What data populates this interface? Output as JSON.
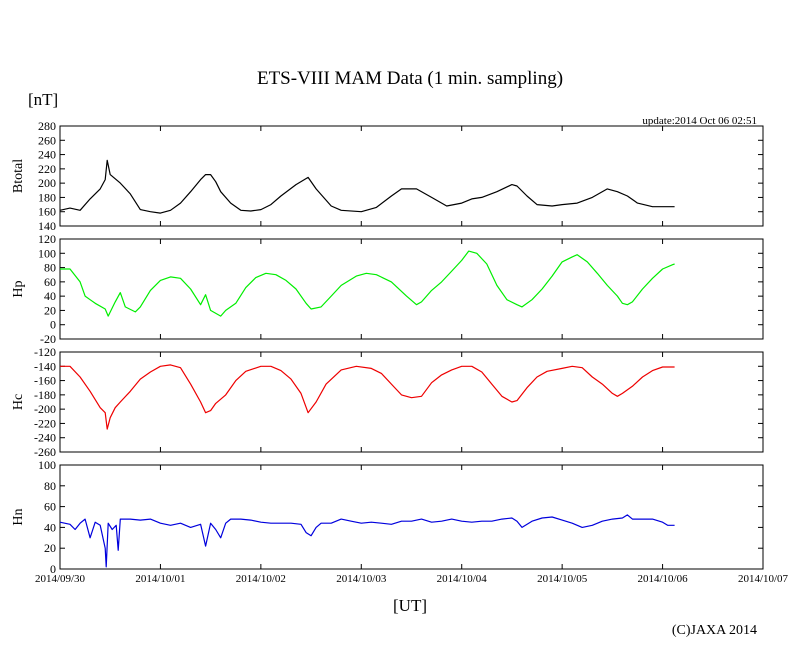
{
  "chart_data": {
    "type": "line",
    "title": "ETS-VIII MAM Data (1 min. sampling)",
    "unit_label": "[nT]",
    "update_text": "update:2014 Oct 06 02:51",
    "xlabel": "[UT]",
    "copyright": "(C)JAXA 2014",
    "x_ticks": [
      "2014/09/30",
      "2014/10/01",
      "2014/10/02",
      "2014/10/03",
      "2014/10/04",
      "2014/10/05",
      "2014/10/06",
      "2014/10/07"
    ],
    "xlim": [
      0,
      7
    ],
    "panels": [
      {
        "name": "Btotal",
        "color": "#000000",
        "ylim": [
          140,
          280
        ],
        "yticks": [
          140,
          160,
          180,
          200,
          220,
          240,
          260,
          280
        ],
        "series": [
          [
            0,
            162
          ],
          [
            0.1,
            165
          ],
          [
            0.2,
            162
          ],
          [
            0.3,
            178
          ],
          [
            0.4,
            192
          ],
          [
            0.45,
            205
          ],
          [
            0.47,
            232
          ],
          [
            0.5,
            212
          ],
          [
            0.6,
            200
          ],
          [
            0.7,
            185
          ],
          [
            0.8,
            163
          ],
          [
            0.9,
            160
          ],
          [
            1.0,
            158
          ],
          [
            1.1,
            162
          ],
          [
            1.2,
            172
          ],
          [
            1.3,
            188
          ],
          [
            1.4,
            205
          ],
          [
            1.45,
            212
          ],
          [
            1.5,
            212
          ],
          [
            1.55,
            202
          ],
          [
            1.6,
            188
          ],
          [
            1.7,
            172
          ],
          [
            1.8,
            162
          ],
          [
            1.9,
            161
          ],
          [
            2.0,
            163
          ],
          [
            2.1,
            170
          ],
          [
            2.2,
            182
          ],
          [
            2.35,
            198
          ],
          [
            2.47,
            208
          ],
          [
            2.55,
            192
          ],
          [
            2.7,
            168
          ],
          [
            2.8,
            162
          ],
          [
            3.0,
            160
          ],
          [
            3.15,
            166
          ],
          [
            3.3,
            182
          ],
          [
            3.4,
            192
          ],
          [
            3.55,
            192
          ],
          [
            3.7,
            180
          ],
          [
            3.85,
            168
          ],
          [
            4.0,
            172
          ],
          [
            4.1,
            178
          ],
          [
            4.2,
            180
          ],
          [
            4.35,
            188
          ],
          [
            4.5,
            198
          ],
          [
            4.55,
            196
          ],
          [
            4.65,
            182
          ],
          [
            4.75,
            170
          ],
          [
            4.9,
            168
          ],
          [
            5.0,
            170
          ],
          [
            5.15,
            172
          ],
          [
            5.3,
            180
          ],
          [
            5.45,
            192
          ],
          [
            5.55,
            188
          ],
          [
            5.65,
            182
          ],
          [
            5.75,
            172
          ],
          [
            5.9,
            167
          ],
          [
            6.0,
            167
          ],
          [
            6.12,
            167
          ]
        ]
      },
      {
        "name": "Hp",
        "color": "#00ee00",
        "ylim": [
          -20,
          120
        ],
        "yticks": [
          -20,
          0,
          20,
          40,
          60,
          80,
          100,
          120
        ],
        "series": [
          [
            0,
            78
          ],
          [
            0.1,
            78
          ],
          [
            0.2,
            60
          ],
          [
            0.25,
            40
          ],
          [
            0.3,
            35
          ],
          [
            0.35,
            30
          ],
          [
            0.45,
            22
          ],
          [
            0.48,
            12
          ],
          [
            0.55,
            32
          ],
          [
            0.6,
            45
          ],
          [
            0.65,
            25
          ],
          [
            0.75,
            18
          ],
          [
            0.8,
            25
          ],
          [
            0.9,
            48
          ],
          [
            1.0,
            62
          ],
          [
            1.1,
            67
          ],
          [
            1.2,
            65
          ],
          [
            1.3,
            50
          ],
          [
            1.4,
            28
          ],
          [
            1.45,
            42
          ],
          [
            1.5,
            20
          ],
          [
            1.6,
            12
          ],
          [
            1.65,
            20
          ],
          [
            1.75,
            30
          ],
          [
            1.85,
            52
          ],
          [
            1.95,
            66
          ],
          [
            2.05,
            72
          ],
          [
            2.15,
            70
          ],
          [
            2.25,
            62
          ],
          [
            2.35,
            50
          ],
          [
            2.45,
            30
          ],
          [
            2.5,
            22
          ],
          [
            2.6,
            25
          ],
          [
            2.7,
            40
          ],
          [
            2.8,
            55
          ],
          [
            2.95,
            68
          ],
          [
            3.05,
            72
          ],
          [
            3.15,
            70
          ],
          [
            3.3,
            60
          ],
          [
            3.45,
            40
          ],
          [
            3.55,
            28
          ],
          [
            3.6,
            32
          ],
          [
            3.7,
            48
          ],
          [
            3.8,
            60
          ],
          [
            3.9,
            75
          ],
          [
            4.0,
            90
          ],
          [
            4.07,
            103
          ],
          [
            4.15,
            100
          ],
          [
            4.25,
            85
          ],
          [
            4.35,
            55
          ],
          [
            4.45,
            35
          ],
          [
            4.55,
            28
          ],
          [
            4.6,
            25
          ],
          [
            4.7,
            35
          ],
          [
            4.8,
            50
          ],
          [
            4.9,
            68
          ],
          [
            5.0,
            88
          ],
          [
            5.1,
            95
          ],
          [
            5.15,
            98
          ],
          [
            5.25,
            88
          ],
          [
            5.35,
            72
          ],
          [
            5.45,
            55
          ],
          [
            5.55,
            40
          ],
          [
            5.6,
            30
          ],
          [
            5.65,
            28
          ],
          [
            5.7,
            32
          ],
          [
            5.8,
            50
          ],
          [
            5.9,
            65
          ],
          [
            6.0,
            78
          ],
          [
            6.1,
            84
          ],
          [
            6.12,
            85
          ]
        ]
      },
      {
        "name": "Hc",
        "color": "#ee0000",
        "ylim": [
          -260,
          -120
        ],
        "yticks": [
          -260,
          -240,
          -220,
          -200,
          -180,
          -160,
          -140,
          -120
        ],
        "series": [
          [
            0,
            -140
          ],
          [
            0.1,
            -140
          ],
          [
            0.2,
            -155
          ],
          [
            0.3,
            -175
          ],
          [
            0.4,
            -198
          ],
          [
            0.45,
            -205
          ],
          [
            0.47,
            -228
          ],
          [
            0.5,
            -212
          ],
          [
            0.55,
            -198
          ],
          [
            0.6,
            -190
          ],
          [
            0.7,
            -175
          ],
          [
            0.8,
            -158
          ],
          [
            0.9,
            -148
          ],
          [
            1.0,
            -140
          ],
          [
            1.1,
            -138
          ],
          [
            1.2,
            -142
          ],
          [
            1.3,
            -165
          ],
          [
            1.4,
            -190
          ],
          [
            1.45,
            -205
          ],
          [
            1.5,
            -202
          ],
          [
            1.55,
            -192
          ],
          [
            1.65,
            -180
          ],
          [
            1.75,
            -160
          ],
          [
            1.85,
            -147
          ],
          [
            2.0,
            -140
          ],
          [
            2.1,
            -140
          ],
          [
            2.2,
            -146
          ],
          [
            2.3,
            -158
          ],
          [
            2.4,
            -178
          ],
          [
            2.47,
            -205
          ],
          [
            2.55,
            -190
          ],
          [
            2.65,
            -165
          ],
          [
            2.8,
            -145
          ],
          [
            2.95,
            -140
          ],
          [
            3.1,
            -143
          ],
          [
            3.2,
            -150
          ],
          [
            3.3,
            -165
          ],
          [
            3.4,
            -180
          ],
          [
            3.5,
            -184
          ],
          [
            3.6,
            -182
          ],
          [
            3.7,
            -163
          ],
          [
            3.8,
            -152
          ],
          [
            3.9,
            -145
          ],
          [
            4.0,
            -140
          ],
          [
            4.1,
            -140
          ],
          [
            4.2,
            -148
          ],
          [
            4.3,
            -165
          ],
          [
            4.4,
            -182
          ],
          [
            4.5,
            -190
          ],
          [
            4.55,
            -188
          ],
          [
            4.65,
            -170
          ],
          [
            4.75,
            -155
          ],
          [
            4.85,
            -147
          ],
          [
            5.0,
            -143
          ],
          [
            5.1,
            -140
          ],
          [
            5.2,
            -142
          ],
          [
            5.3,
            -155
          ],
          [
            5.4,
            -165
          ],
          [
            5.5,
            -178
          ],
          [
            5.55,
            -182
          ],
          [
            5.6,
            -178
          ],
          [
            5.7,
            -168
          ],
          [
            5.8,
            -155
          ],
          [
            5.9,
            -146
          ],
          [
            6.0,
            -141
          ],
          [
            6.12,
            -141
          ]
        ]
      },
      {
        "name": "Hn",
        "color": "#0000dd",
        "ylim": [
          0,
          100
        ],
        "yticks": [
          0,
          20,
          40,
          60,
          80,
          100
        ],
        "series": [
          [
            0,
            45
          ],
          [
            0.1,
            43
          ],
          [
            0.15,
            38
          ],
          [
            0.2,
            44
          ],
          [
            0.25,
            48
          ],
          [
            0.3,
            30
          ],
          [
            0.35,
            45
          ],
          [
            0.4,
            42
          ],
          [
            0.45,
            20
          ],
          [
            0.46,
            2
          ],
          [
            0.48,
            44
          ],
          [
            0.52,
            38
          ],
          [
            0.56,
            42
          ],
          [
            0.58,
            18
          ],
          [
            0.6,
            48
          ],
          [
            0.7,
            48
          ],
          [
            0.8,
            47
          ],
          [
            0.9,
            48
          ],
          [
            1.0,
            44
          ],
          [
            1.1,
            42
          ],
          [
            1.2,
            44
          ],
          [
            1.3,
            40
          ],
          [
            1.4,
            43
          ],
          [
            1.45,
            22
          ],
          [
            1.5,
            44
          ],
          [
            1.55,
            38
          ],
          [
            1.6,
            30
          ],
          [
            1.65,
            44
          ],
          [
            1.7,
            48
          ],
          [
            1.8,
            48
          ],
          [
            1.9,
            47
          ],
          [
            2.0,
            45
          ],
          [
            2.1,
            44
          ],
          [
            2.2,
            44
          ],
          [
            2.3,
            44
          ],
          [
            2.4,
            43
          ],
          [
            2.45,
            35
          ],
          [
            2.5,
            32
          ],
          [
            2.55,
            40
          ],
          [
            2.6,
            44
          ],
          [
            2.7,
            44
          ],
          [
            2.8,
            48
          ],
          [
            2.9,
            46
          ],
          [
            3.0,
            44
          ],
          [
            3.1,
            45
          ],
          [
            3.2,
            44
          ],
          [
            3.3,
            43
          ],
          [
            3.4,
            46
          ],
          [
            3.5,
            46
          ],
          [
            3.6,
            48
          ],
          [
            3.7,
            45
          ],
          [
            3.8,
            46
          ],
          [
            3.9,
            48
          ],
          [
            4.0,
            46
          ],
          [
            4.1,
            45
          ],
          [
            4.2,
            46
          ],
          [
            4.3,
            46
          ],
          [
            4.4,
            48
          ],
          [
            4.5,
            49
          ],
          [
            4.55,
            46
          ],
          [
            4.6,
            40
          ],
          [
            4.7,
            46
          ],
          [
            4.8,
            49
          ],
          [
            4.9,
            50
          ],
          [
            5.0,
            47
          ],
          [
            5.1,
            44
          ],
          [
            5.2,
            40
          ],
          [
            5.3,
            42
          ],
          [
            5.4,
            46
          ],
          [
            5.5,
            48
          ],
          [
            5.6,
            49
          ],
          [
            5.65,
            52
          ],
          [
            5.7,
            48
          ],
          [
            5.8,
            48
          ],
          [
            5.9,
            48
          ],
          [
            6.0,
            45
          ],
          [
            6.05,
            42
          ],
          [
            6.12,
            42
          ]
        ]
      }
    ]
  }
}
